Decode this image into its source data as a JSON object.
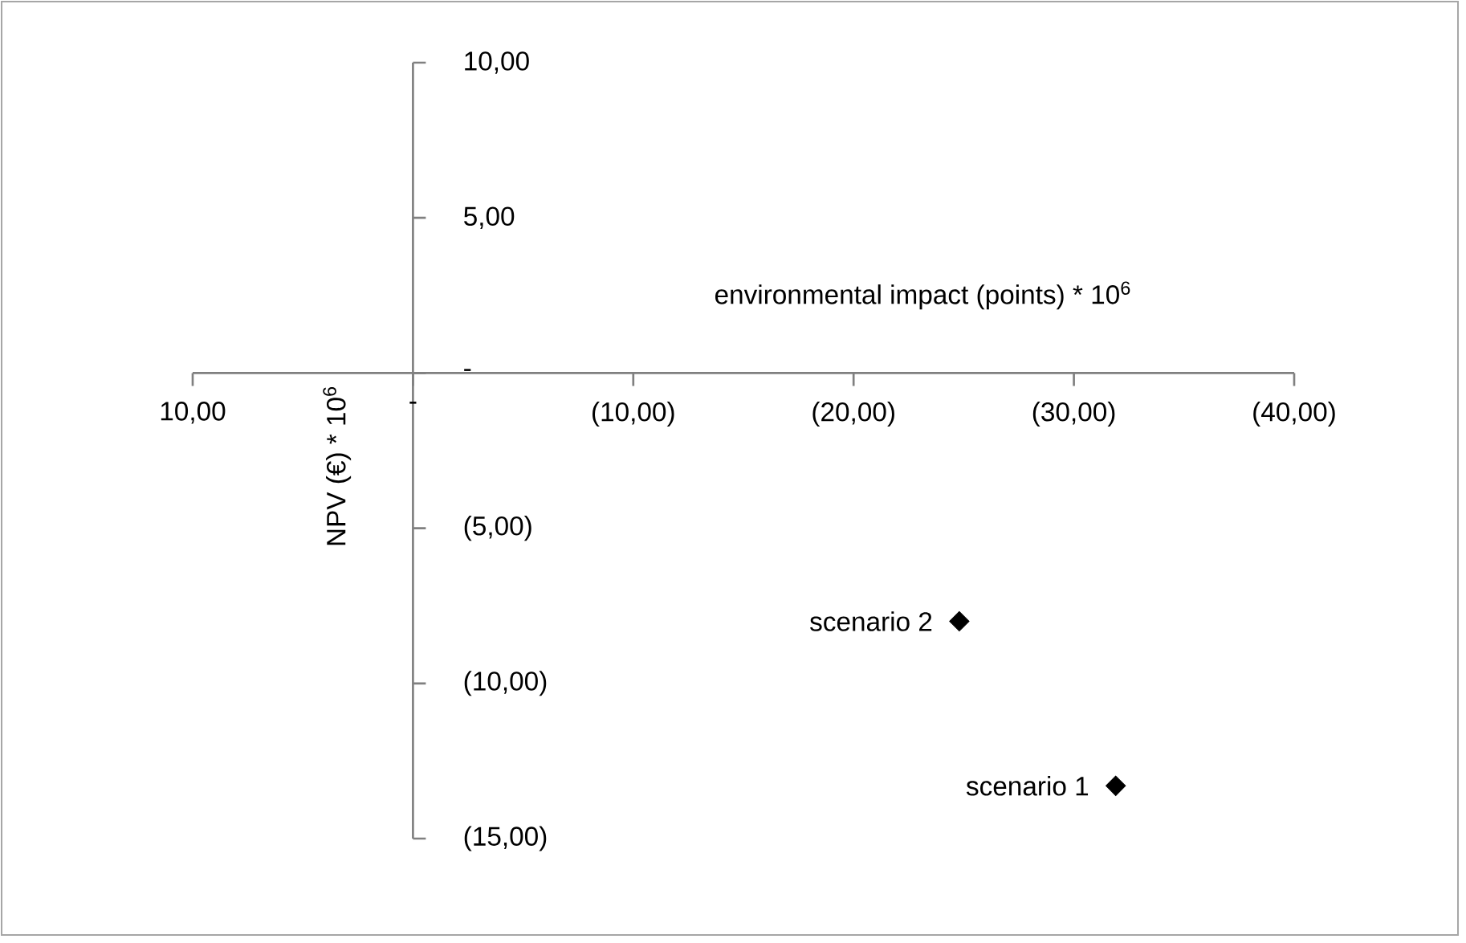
{
  "chart_data": {
    "type": "scatter",
    "xlabel": "environmental impact (points) * 10$^{6}$",
    "ylabel": "NPV (€) * 10$^{6}$",
    "marker": "diamond",
    "xlim": [
      10,
      -40
    ],
    "xticks": [
      {
        "value": 10,
        "label": "10,00"
      },
      {
        "value": 0,
        "label": "-"
      },
      {
        "value": -10,
        "label": "(10,00)"
      },
      {
        "value": -20,
        "label": "(20,00)"
      },
      {
        "value": -30,
        "label": "(30,00)"
      },
      {
        "value": -40,
        "label": "(40,00)"
      }
    ],
    "ylim": [
      -15,
      10
    ],
    "yticks": [
      {
        "value": -15,
        "label": "(15,00)"
      },
      {
        "value": -10,
        "label": "(10,00)"
      },
      {
        "value": -5,
        "label": "(5,00)"
      },
      {
        "value": 0,
        "label": "-"
      },
      {
        "value": 5,
        "label": "5,00"
      },
      {
        "value": 10,
        "label": "10,00"
      }
    ],
    "series": [
      {
        "name": "scenario 1",
        "color": "#000000",
        "x": [
          -31.9
        ],
        "values": [
          -13.3
        ]
      },
      {
        "name": "scenario 2",
        "color": "#000000",
        "x": [
          -24.8
        ],
        "values": [
          -8.0
        ]
      }
    ]
  }
}
